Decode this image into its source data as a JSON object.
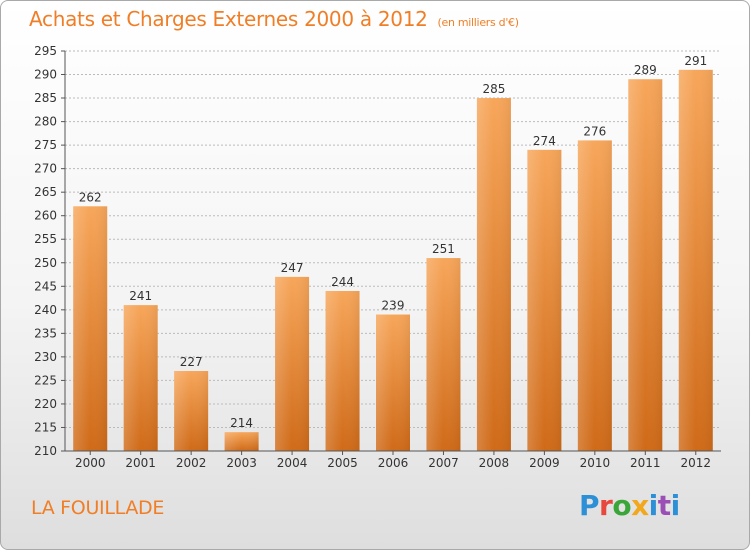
{
  "header": {
    "title": "Achats et Charges Externes 2000 à 2012",
    "unit": "(en milliers d'€)"
  },
  "footer": {
    "commune": "LA FOUILLADE",
    "logo": "Proxiti"
  },
  "colors": {
    "accent": "#f07e26",
    "bar_light": "#f7a65a",
    "bar_dark": "#cf6a18",
    "grid": "#bbbbbb"
  },
  "chart_data": {
    "type": "bar",
    "categories": [
      "2000",
      "2001",
      "2002",
      "2003",
      "2004",
      "2005",
      "2006",
      "2007",
      "2008",
      "2009",
      "2010",
      "2011",
      "2012"
    ],
    "values": [
      262,
      241,
      227,
      214,
      247,
      244,
      239,
      251,
      285,
      274,
      276,
      289,
      291
    ],
    "ylim": [
      210,
      295
    ],
    "yticks": [
      210,
      215,
      220,
      225,
      230,
      235,
      240,
      245,
      250,
      255,
      260,
      265,
      270,
      275,
      280,
      285,
      290,
      295
    ],
    "grid": true,
    "data_labels": true
  }
}
